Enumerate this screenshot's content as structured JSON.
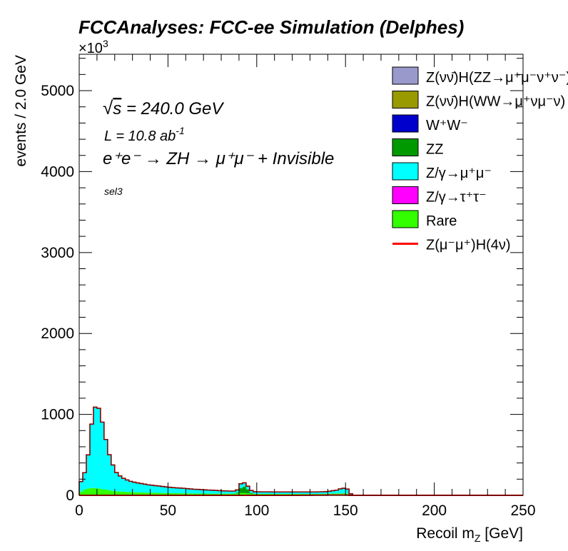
{
  "chart_data": {
    "type": "area",
    "title": "FCCAnalyses: FCC-ee Simulation (Delphes)",
    "xlabel": "Recoil m_Z [GeV]",
    "xlabel_main": "Recoil m",
    "xlabel_sub": "Z",
    "xlabel_tail": " [GeV]",
    "ylabel": "events / 2.0 GeV",
    "y_multiplier_prefix": "×10",
    "y_multiplier_exp": "3",
    "xlim": [
      0,
      250
    ],
    "ylim": [
      0,
      5450
    ],
    "xticks": [
      0,
      50,
      100,
      150,
      200,
      250
    ],
    "yticks": [
      0,
      1000,
      2000,
      3000,
      4000,
      5000
    ],
    "bin_width": 2.0,
    "annotations": {
      "energy_sqrt": "√",
      "energy_s": "s",
      "energy_rest": " = 240.0 GeV",
      "lumi_main": "L = 10.8 ab",
      "lumi_exp": "-1",
      "process": "e⁺e⁻ → ZH → μ⁺μ⁻ + Invisible",
      "selection": "sel3"
    },
    "legend_position": "top-right",
    "legend": [
      {
        "label": "Z(νν̄)H(ZZ→μ⁺μ⁻ν⁺ν⁻)",
        "color": "#9999cc",
        "kind": "fill"
      },
      {
        "label": "Z(νν̄)H(WW→μ⁺νμ⁻ν)",
        "color": "#999900",
        "kind": "fill"
      },
      {
        "label": "W⁺W⁻",
        "color": "#0000cc",
        "kind": "fill"
      },
      {
        "label": "ZZ",
        "color": "#009900",
        "kind": "fill"
      },
      {
        "label": "Z/γ→μ⁺μ⁻",
        "color": "#00ffff",
        "kind": "fill"
      },
      {
        "label": "Z/γ→τ⁺τ⁻",
        "color": "#ff00ff",
        "kind": "fill"
      },
      {
        "label": "Rare",
        "color": "#33ff00",
        "kind": "fill"
      },
      {
        "label": "Z(μ⁻μ⁺)H(4ν)",
        "color": "#ff0000",
        "kind": "line"
      }
    ],
    "x_bin_starts": [
      0,
      2,
      4,
      6,
      8,
      10,
      12,
      14,
      16,
      18,
      20,
      22,
      24,
      26,
      28,
      30,
      32,
      34,
      36,
      38,
      40,
      42,
      44,
      46,
      48,
      50,
      52,
      54,
      56,
      58,
      60,
      62,
      64,
      66,
      68,
      70,
      72,
      74,
      76,
      78,
      80,
      82,
      84,
      86,
      88,
      90,
      92,
      94,
      96,
      98,
      100,
      102,
      104,
      106,
      108,
      110,
      112,
      114,
      116,
      118,
      120,
      122,
      124,
      126,
      128,
      130,
      132,
      134,
      136,
      138,
      140,
      142,
      144,
      146,
      148,
      150,
      152,
      154,
      156
    ],
    "series": [
      {
        "name": "Rare",
        "color": "#33ff00",
        "values": [
          45,
          70,
          85,
          90,
          90,
          85,
          75,
          70,
          62,
          55,
          50,
          47,
          44,
          42,
          40,
          38,
          36,
          35,
          34,
          33,
          32,
          31,
          30,
          29,
          28,
          28,
          27,
          26,
          25,
          25,
          24,
          24,
          23,
          23,
          22,
          22,
          21,
          21,
          21,
          20,
          20,
          20,
          20,
          21,
          24,
          28,
          28,
          24,
          20,
          19,
          19,
          18,
          18,
          18,
          17,
          17,
          17,
          17,
          17,
          17,
          17,
          17,
          17,
          17,
          17,
          17,
          17,
          18,
          18,
          19,
          20,
          22,
          24,
          25,
          25,
          20,
          6,
          0,
          0
        ]
      },
      {
        "name": "ZZ",
        "color": "#009900",
        "values": [
          0,
          0,
          0,
          0,
          0,
          0,
          0,
          0,
          0,
          0,
          0,
          0,
          0,
          0,
          0,
          0,
          0,
          0,
          0,
          0,
          0,
          0,
          0,
          0,
          0,
          0,
          0,
          0,
          0,
          0,
          0,
          0,
          0,
          0,
          0,
          0,
          0,
          0,
          0,
          0,
          0,
          0,
          0,
          0,
          10,
          60,
          80,
          50,
          10,
          0,
          0,
          0,
          0,
          0,
          0,
          0,
          0,
          0,
          0,
          0,
          0,
          0,
          0,
          0,
          0,
          0,
          0,
          0,
          0,
          0,
          0,
          0,
          0,
          0,
          0,
          0,
          0,
          0,
          0
        ]
      },
      {
        "name": "Z/γ→μ⁺μ⁻",
        "color": "#00ffff",
        "values": [
          125,
          210,
          415,
          790,
          1000,
          990,
          830,
          620,
          440,
          320,
          232,
          193,
          166,
          148,
          133,
          125,
          118,
          111,
          104,
          97,
          93,
          89,
          85,
          81,
          76,
          72,
          68,
          66,
          65,
          62,
          58,
          55,
          52,
          50,
          48,
          46,
          44,
          42,
          40,
          38,
          36,
          34,
          33,
          32,
          33,
          55,
          47,
          39,
          30,
          26,
          25,
          25,
          25,
          25,
          25,
          25,
          25,
          25,
          25,
          25,
          25,
          25,
          25,
          25,
          25,
          25,
          25,
          25,
          26,
          27,
          30,
          36,
          40,
          55,
          63,
          58,
          13,
          2,
          0
        ]
      },
      {
        "name": "W⁺W⁻",
        "color": "#0000cc",
        "values": [
          0,
          0,
          0,
          0,
          0,
          0,
          0,
          0,
          0,
          0,
          0,
          0,
          0,
          0,
          0,
          0,
          0,
          0,
          0,
          0,
          0,
          0,
          0,
          0,
          0,
          0,
          0,
          0,
          0,
          0,
          0,
          0,
          0,
          0,
          0,
          0,
          0,
          0,
          0,
          0,
          0,
          0,
          0,
          0,
          0,
          0,
          0,
          0,
          0,
          0,
          0,
          0,
          0,
          0,
          0,
          0,
          0,
          0,
          0,
          0,
          0,
          0,
          0,
          0,
          0,
          0,
          0,
          0,
          0,
          0,
          0,
          0,
          0,
          0,
          0,
          0,
          0,
          0,
          0
        ]
      },
      {
        "name": "Z(νν̄)H(WW→μ⁺νμ⁻ν)",
        "color": "#999900",
        "values": [
          0,
          0,
          0,
          0,
          0,
          0,
          0,
          0,
          0,
          0,
          0,
          0,
          0,
          0,
          0,
          0,
          0,
          0,
          0,
          0,
          0,
          0,
          0,
          0,
          0,
          0,
          0,
          0,
          0,
          0,
          0,
          0,
          0,
          0,
          0,
          0,
          0,
          0,
          0,
          0,
          0,
          0,
          0,
          0,
          0,
          0,
          0,
          0,
          0,
          0,
          0,
          0,
          0,
          0,
          0,
          0,
          0,
          0,
          0,
          0,
          0,
          0,
          0,
          0,
          0,
          0,
          0,
          0,
          0,
          0,
          0,
          0,
          0,
          0,
          0,
          0,
          0,
          0,
          0
        ]
      },
      {
        "name": "Z(νν̄)H(ZZ→μ⁺μ⁻ν⁺ν⁻)",
        "color": "#9999cc",
        "values": [
          0,
          0,
          0,
          0,
          0,
          0,
          0,
          0,
          0,
          0,
          0,
          0,
          0,
          0,
          0,
          0,
          0,
          0,
          0,
          0,
          0,
          0,
          0,
          0,
          0,
          0,
          0,
          0,
          0,
          0,
          0,
          0,
          0,
          0,
          0,
          0,
          0,
          0,
          0,
          0,
          0,
          0,
          0,
          0,
          0,
          0,
          0,
          0,
          0,
          0,
          0,
          0,
          0,
          0,
          0,
          0,
          0,
          0,
          0,
          0,
          0,
          0,
          0,
          0,
          0,
          0,
          0,
          0,
          0,
          0,
          0,
          0,
          0,
          0,
          0,
          0,
          0,
          0,
          0
        ]
      }
    ],
    "signal": {
      "name": "Z(μ⁻μ⁺)H(4ν)",
      "color": "#ff0000",
      "values": [
        0,
        0,
        0,
        0,
        0,
        0,
        0,
        0,
        0,
        0,
        0,
        0,
        0,
        0,
        0,
        0,
        0,
        0,
        0,
        0,
        0,
        0,
        0,
        0,
        0,
        0,
        0,
        0,
        0,
        0,
        0,
        0,
        0,
        0,
        0,
        0,
        0,
        0,
        0,
        0,
        0,
        0,
        0,
        0,
        0,
        0,
        0,
        0,
        0,
        0,
        0,
        0,
        0,
        0,
        0,
        0,
        0,
        0,
        0,
        0,
        0,
        0,
        1,
        1,
        1,
        1,
        2,
        2,
        2,
        2,
        3,
        3,
        3,
        3,
        3,
        2,
        0,
        0,
        0
      ]
    }
  }
}
